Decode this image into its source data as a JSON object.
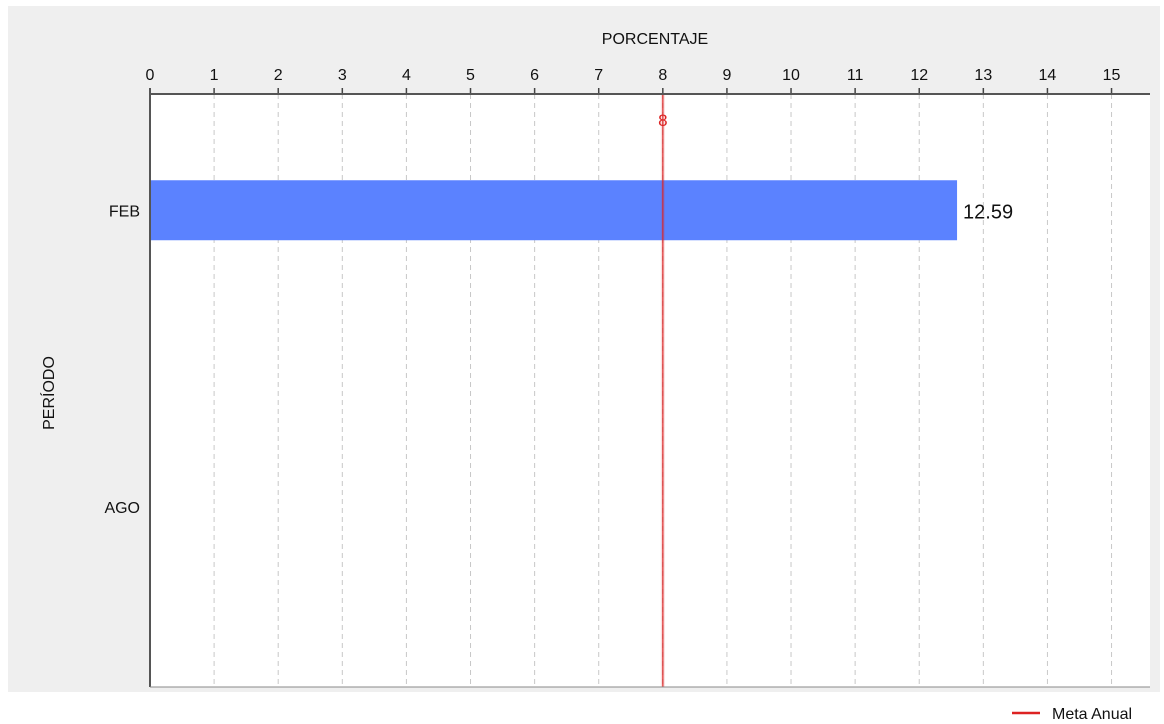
{
  "chart_data": {
    "type": "bar",
    "orientation": "horizontal",
    "title": "",
    "xlabel": "PORCENTAJE",
    "ylabel": "PERÍODO",
    "xlim": [
      0,
      15.6
    ],
    "x_ticks": [
      0,
      1,
      2,
      3,
      4,
      5,
      6,
      7,
      8,
      9,
      10,
      11,
      12,
      13,
      14,
      15
    ],
    "x_axis_position": "top",
    "grid": "vertical-dashed",
    "categories": [
      "FEB",
      "AGO"
    ],
    "values": [
      12.59,
      null
    ],
    "value_labels": [
      "12.59",
      ""
    ],
    "bar_color": "#5b82ff",
    "reference_line": {
      "value": 8,
      "label": "8",
      "color": "#dd2222",
      "legend": "Meta Anual"
    },
    "legend_position": "bottom-right",
    "background_color": "#efefef",
    "plot_background_color": "#ffffff"
  }
}
